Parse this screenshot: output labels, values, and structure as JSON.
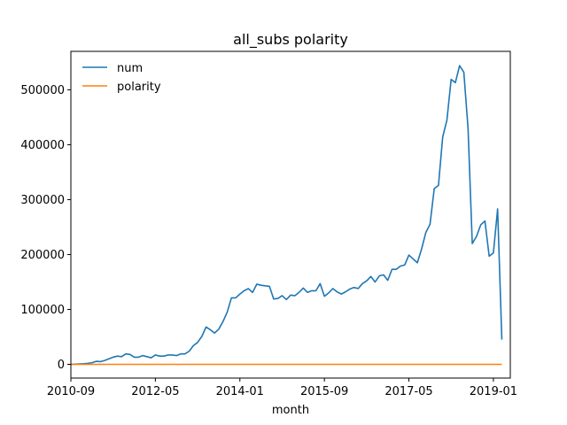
{
  "chart_data": {
    "type": "line",
    "title": "all_subs polarity",
    "xlabel": "month",
    "ylabel": "",
    "xlim": [
      "2010-09",
      "2019-05"
    ],
    "ylim": [
      -25000,
      570000
    ],
    "legend_position": "top-left",
    "grid": false,
    "x_ticks": [
      "2010-09",
      "2012-05",
      "2014-01",
      "2015-09",
      "2017-05",
      "2019-01"
    ],
    "y_ticks": [
      0,
      100000,
      200000,
      300000,
      400000,
      500000
    ],
    "y_tick_labels": [
      "0",
      "100000",
      "200000",
      "300000",
      "400000",
      "500000"
    ],
    "colors": {
      "num": "#1f77b4",
      "polarity": "#ff7f0e"
    },
    "series": [
      {
        "name": "num",
        "points": [
          [
            "2010-09",
            0
          ],
          [
            "2010-10",
            300
          ],
          [
            "2010-11",
            700
          ],
          [
            "2010-12",
            1100
          ],
          [
            "2011-01",
            1800
          ],
          [
            "2011-02",
            3000
          ],
          [
            "2011-03",
            5500
          ],
          [
            "2011-04",
            5000
          ],
          [
            "2011-05",
            7000
          ],
          [
            "2011-06",
            10000
          ],
          [
            "2011-07",
            13000
          ],
          [
            "2011-08",
            15000
          ],
          [
            "2011-09",
            14000
          ],
          [
            "2011-10",
            19000
          ],
          [
            "2011-11",
            18000
          ],
          [
            "2011-12",
            13000
          ],
          [
            "2012-01",
            13000
          ],
          [
            "2012-02",
            16000
          ],
          [
            "2012-03",
            14000
          ],
          [
            "2012-04",
            12000
          ],
          [
            "2012-05",
            17000
          ],
          [
            "2012-06",
            15000
          ],
          [
            "2012-07",
            15000
          ],
          [
            "2012-08",
            17000
          ],
          [
            "2012-09",
            17000
          ],
          [
            "2012-10",
            16000
          ],
          [
            "2012-11",
            19000
          ],
          [
            "2012-12",
            19000
          ],
          [
            "2013-01",
            24000
          ],
          [
            "2013-02",
            34000
          ],
          [
            "2013-03",
            40000
          ],
          [
            "2013-04",
            51000
          ],
          [
            "2013-05",
            68000
          ],
          [
            "2013-06",
            63000
          ],
          [
            "2013-07",
            57000
          ],
          [
            "2013-08",
            64000
          ],
          [
            "2013-09",
            78000
          ],
          [
            "2013-10",
            95000
          ],
          [
            "2013-11",
            121000
          ],
          [
            "2013-12",
            121000
          ],
          [
            "2014-01",
            128000
          ],
          [
            "2014-02",
            134000
          ],
          [
            "2014-03",
            138000
          ],
          [
            "2014-04",
            131000
          ],
          [
            "2014-05",
            146000
          ],
          [
            "2014-06",
            144000
          ],
          [
            "2014-07",
            143000
          ],
          [
            "2014-08",
            142000
          ],
          [
            "2014-09",
            119000
          ],
          [
            "2014-10",
            120000
          ],
          [
            "2014-11",
            125000
          ],
          [
            "2014-12",
            118000
          ],
          [
            "2015-01",
            126000
          ],
          [
            "2015-02",
            125000
          ],
          [
            "2015-03",
            131000
          ],
          [
            "2015-04",
            139000
          ],
          [
            "2015-05",
            131000
          ],
          [
            "2015-06",
            134000
          ],
          [
            "2015-07",
            134000
          ],
          [
            "2015-08",
            147000
          ],
          [
            "2015-09",
            124000
          ],
          [
            "2015-10",
            130000
          ],
          [
            "2015-11",
            138000
          ],
          [
            "2015-12",
            132000
          ],
          [
            "2016-01",
            128000
          ],
          [
            "2016-02",
            132000
          ],
          [
            "2016-03",
            137000
          ],
          [
            "2016-04",
            140000
          ],
          [
            "2016-05",
            138000
          ],
          [
            "2016-06",
            147000
          ],
          [
            "2016-07",
            152000
          ],
          [
            "2016-08",
            160000
          ],
          [
            "2016-09",
            150000
          ],
          [
            "2016-10",
            161000
          ],
          [
            "2016-11",
            163000
          ],
          [
            "2016-12",
            153000
          ],
          [
            "2017-01",
            173000
          ],
          [
            "2017-02",
            173000
          ],
          [
            "2017-03",
            179000
          ],
          [
            "2017-04",
            181000
          ],
          [
            "2017-05",
            199000
          ],
          [
            "2017-06",
            192000
          ],
          [
            "2017-07",
            185000
          ],
          [
            "2017-08",
            210000
          ],
          [
            "2017-09",
            240000
          ],
          [
            "2017-10",
            255000
          ],
          [
            "2017-11",
            320000
          ],
          [
            "2017-12",
            326000
          ],
          [
            "2018-01",
            414000
          ],
          [
            "2018-02",
            445000
          ],
          [
            "2018-03",
            519000
          ],
          [
            "2018-04",
            513000
          ],
          [
            "2018-05",
            544000
          ],
          [
            "2018-06",
            532000
          ],
          [
            "2018-07",
            430000
          ],
          [
            "2018-08",
            220000
          ],
          [
            "2018-09",
            233000
          ],
          [
            "2018-10",
            254000
          ],
          [
            "2018-11",
            261000
          ],
          [
            "2018-12",
            197000
          ],
          [
            "2019-01",
            203000
          ],
          [
            "2019-02",
            283000
          ],
          [
            "2019-03",
            45000
          ]
        ]
      },
      {
        "name": "polarity",
        "points": [
          [
            "2010-09",
            0
          ],
          [
            "2019-03",
            0
          ]
        ]
      }
    ]
  }
}
